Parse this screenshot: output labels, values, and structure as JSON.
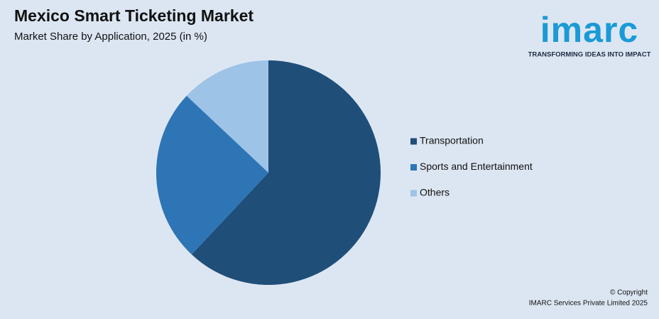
{
  "chart_data": {
    "type": "pie",
    "title": "Mexico Smart Ticketing Market",
    "subtitle": "Market Share by Application, 2025 (in %)",
    "categories": [
      "Transportation",
      "Sports and Entertainment",
      "Others"
    ],
    "values": [
      62,
      25,
      13
    ],
    "colors": [
      "#1f4e79",
      "#2e75b6",
      "#9dc3e6"
    ],
    "legend": "right"
  },
  "logo": {
    "name": "imarc",
    "tagline": "TRANSFORMING IDEAS INTO IMPACT"
  },
  "footer": {
    "copyright": "© Copyright",
    "company": "IMARC Services Private Limited 2025"
  }
}
